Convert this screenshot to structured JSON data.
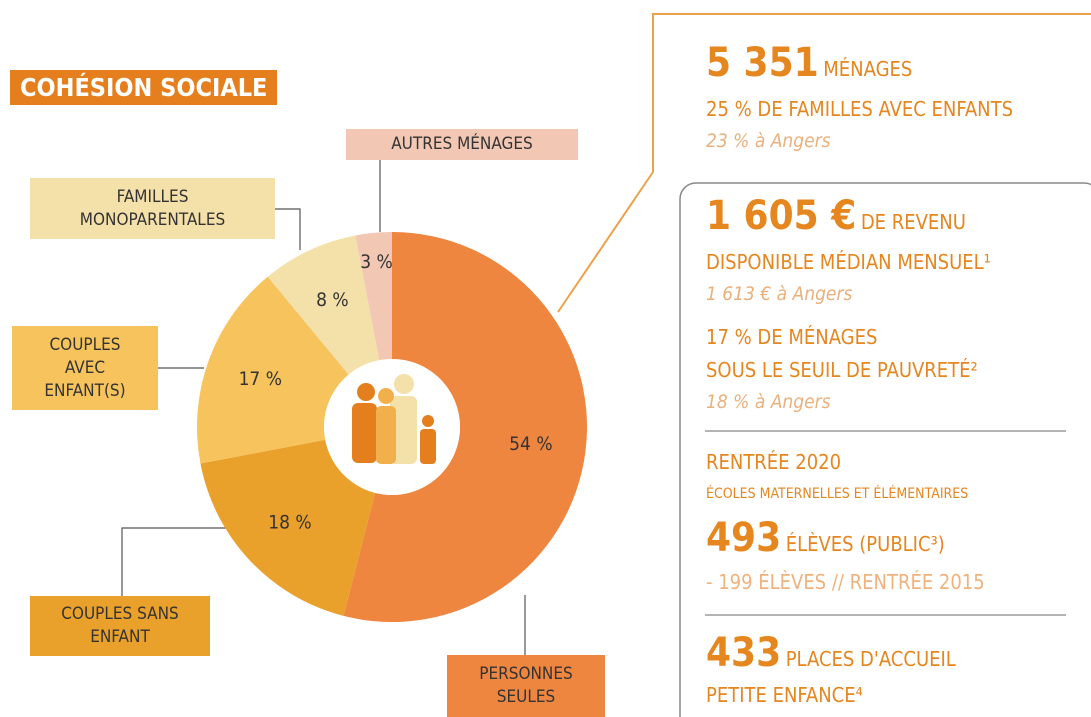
{
  "chart_data": {
    "type": "pie",
    "donut": true,
    "title": "COHÉSION SOCIALE",
    "categories": [
      "PERSONNES SEULES",
      "COUPLES SANS ENFANT",
      "COUPLES AVEC ENFANT(S)",
      "FAMILLES MONOPARENTALES",
      "AUTRES MÉNAGES"
    ],
    "values": [
      54,
      18,
      17,
      8,
      3
    ],
    "value_labels": [
      "54 %",
      "18 %",
      "17 %",
      "8 %",
      "3 %"
    ],
    "colors": [
      "#ef8640",
      "#eaa12c",
      "#f6c35c",
      "#f4e0a9",
      "#f2c7b3"
    ]
  },
  "panel": {
    "menages": {
      "value": "5 351",
      "label": "MÉNAGES"
    },
    "familles": "25 % DE FAMILLES AVEC ENFANTS",
    "familles_angers": "23 % à Angers",
    "revenu": {
      "value": "1 605 €",
      "label": "DE REVENU"
    },
    "revenu_line2": "DISPONIBLE MÉDIAN MENSUEL¹",
    "revenu_angers": "1 613 € à Angers",
    "pauvrete_line1": "17 % DE MÉNAGES",
    "pauvrete_line2": "SOUS LE SEUIL DE PAUVRETÉ²",
    "pauvrete_angers": "18 % à Angers",
    "rentree": "RENTRÉE 2020",
    "ecoles": "ÉCOLES MATERNELLES ET ÉLÉMENTAIRES",
    "eleves": {
      "value": "493",
      "label": "ÉLÈVES (PUBLIC³)"
    },
    "eleves_diff": "- 199 ÉLÈVES // RENTRÉE 2015",
    "places": {
      "value": "433",
      "label": "PLACES D'ACCUEIL"
    },
    "places_line2": "PETITE ENFANCE⁴"
  }
}
